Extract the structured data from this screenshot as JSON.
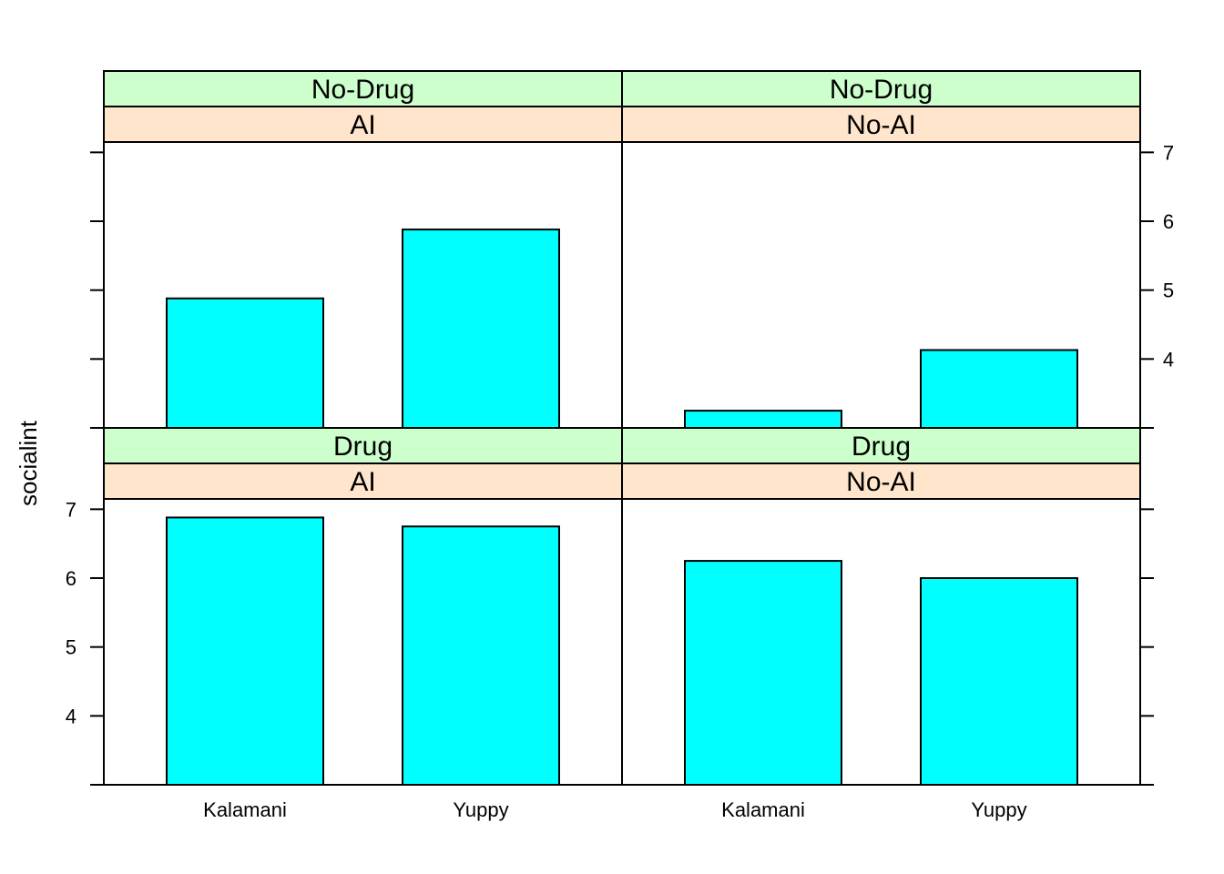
{
  "chart_data": {
    "type": "bar",
    "ylabel": "socialint",
    "ylim": [
      3,
      7.15
    ],
    "yticks": [
      4,
      5,
      6,
      7
    ],
    "categories": [
      "Kalamani",
      "Yuppy"
    ],
    "colors": {
      "bar": "#00ffff",
      "drug_strip": "#ccffcc",
      "ai_strip": "#ffe5cc"
    },
    "panels": [
      {
        "drug": "No-Drug",
        "ai": "AI",
        "values": [
          4.88,
          5.88
        ]
      },
      {
        "drug": "No-Drug",
        "ai": "No-AI",
        "values": [
          3.25,
          4.13
        ]
      },
      {
        "drug": "Drug",
        "ai": "AI",
        "values": [
          6.88,
          6.75
        ]
      },
      {
        "drug": "Drug",
        "ai": "No-AI",
        "values": [
          6.25,
          6.0
        ]
      }
    ]
  }
}
